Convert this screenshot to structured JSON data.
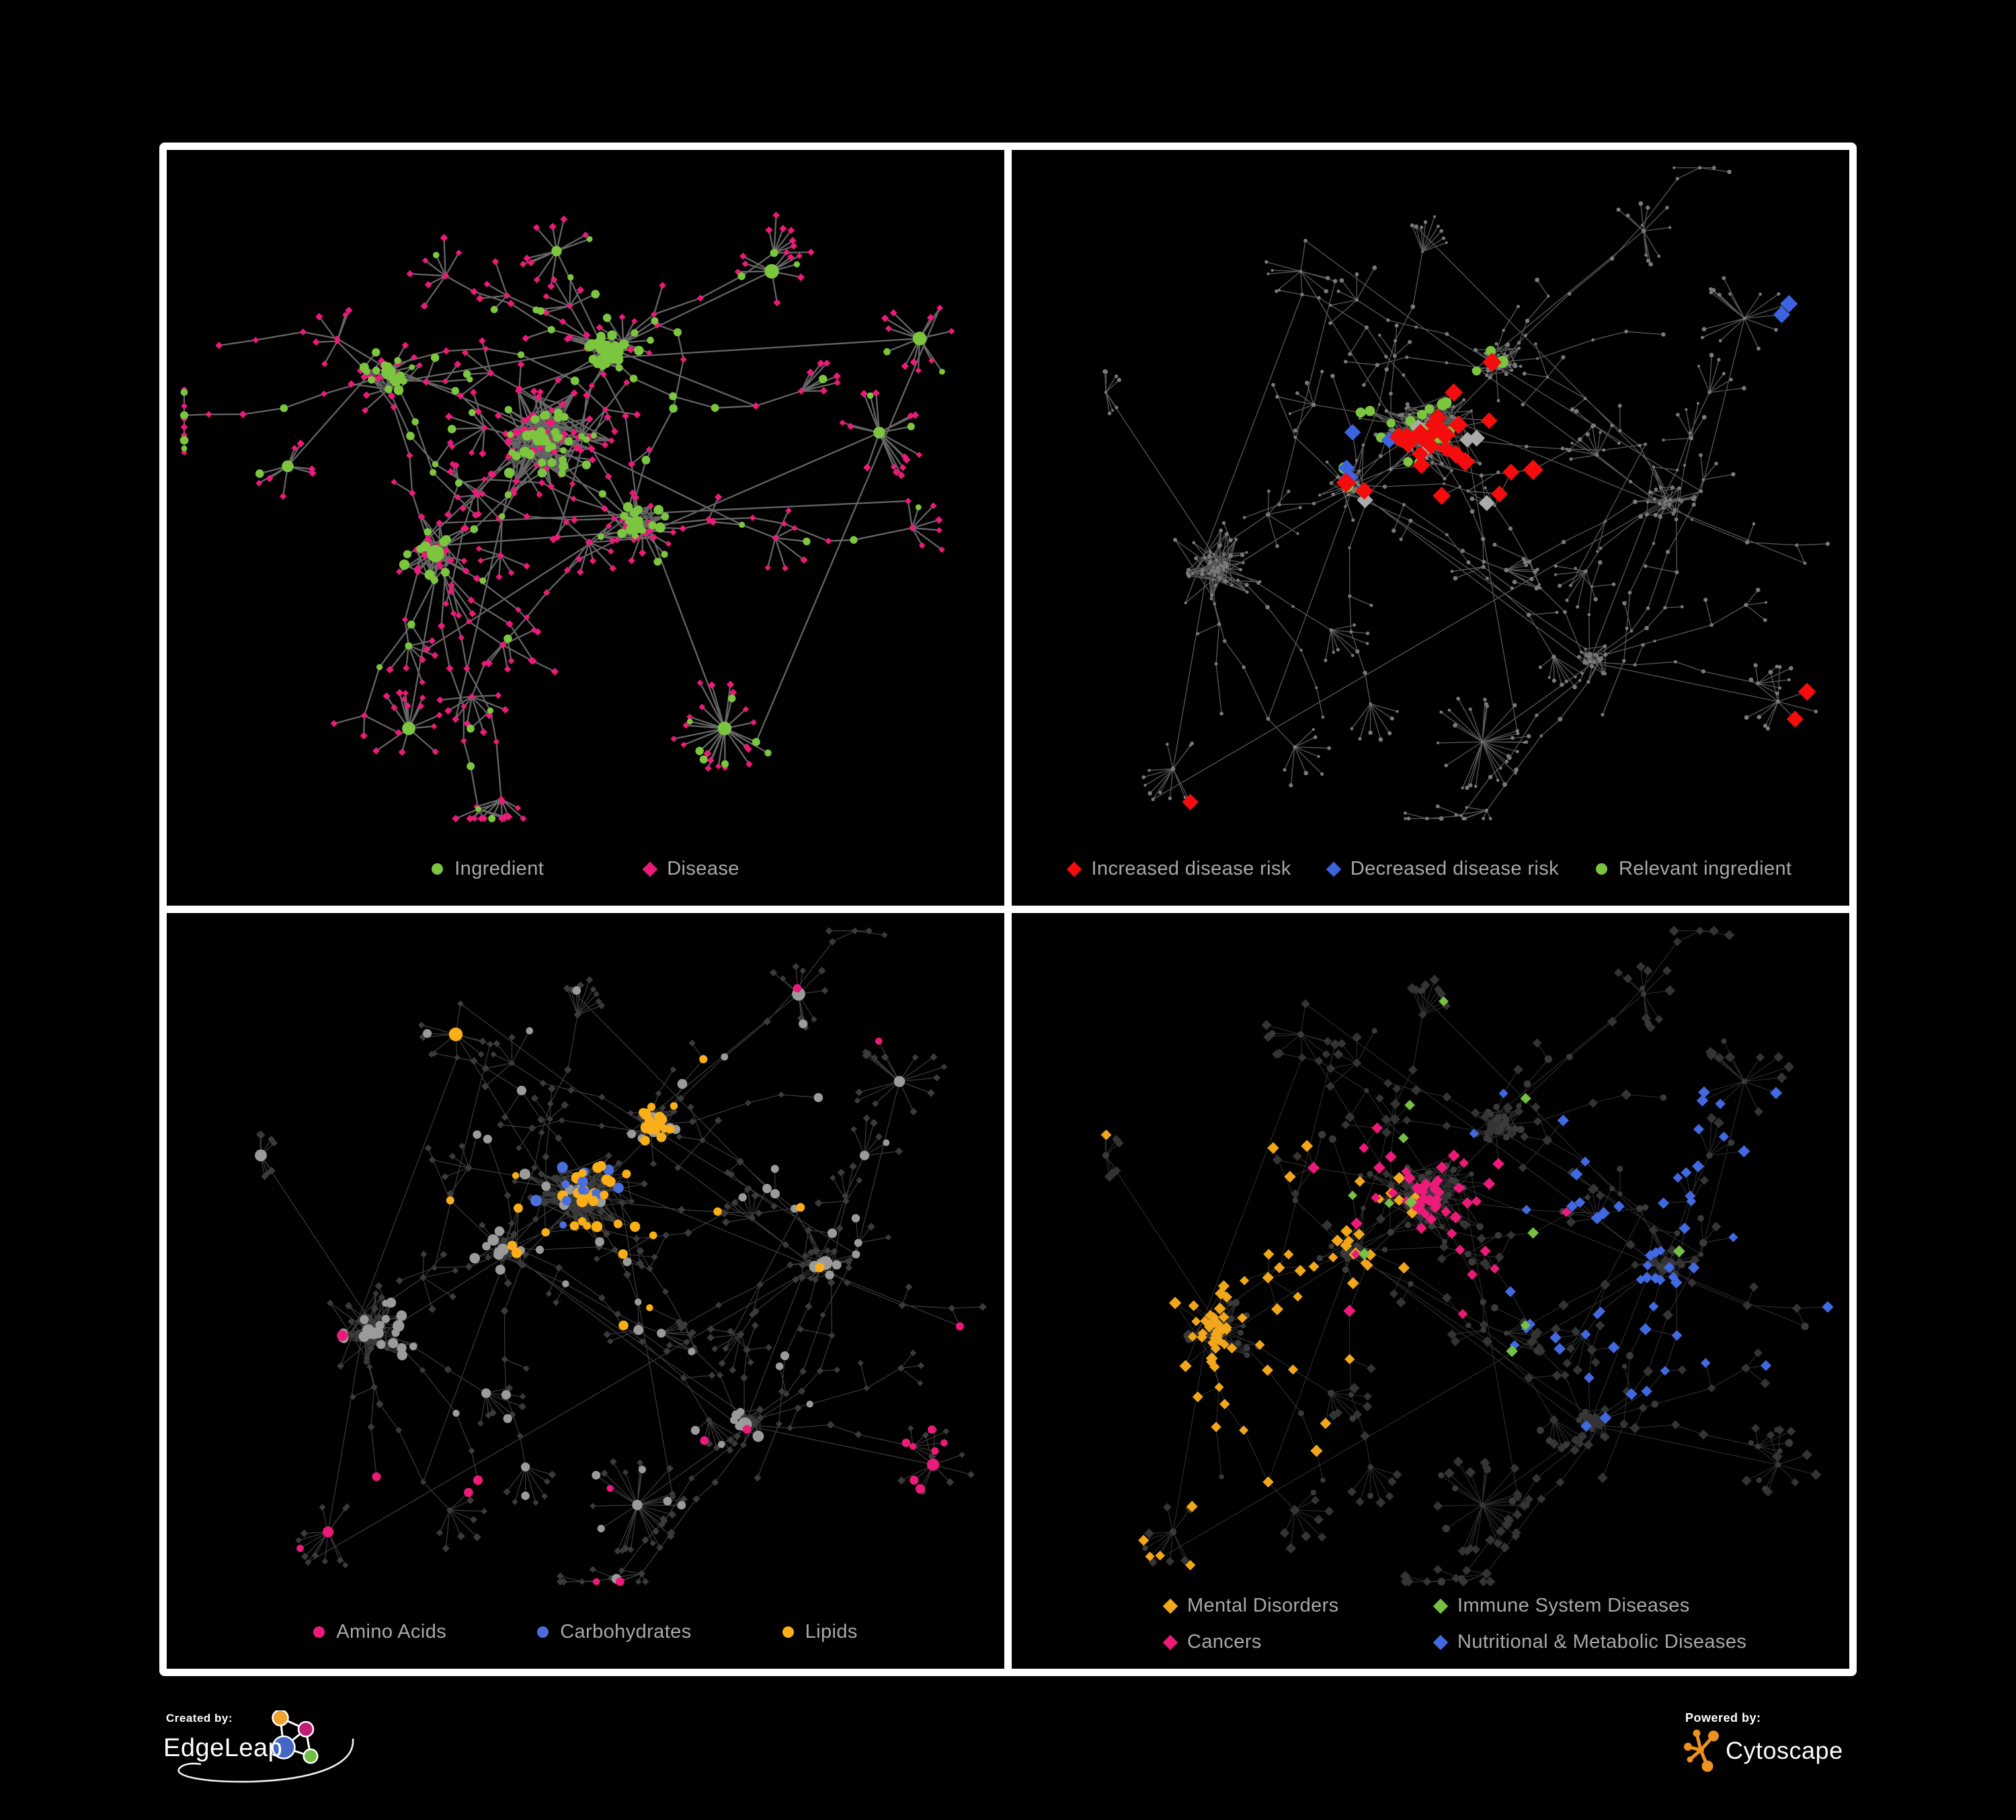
{
  "poster": {
    "background": "#000000",
    "frame_color": "#FFFFFF"
  },
  "panels": [
    {
      "id": "ingredient-disease",
      "legend": {
        "items": [
          {
            "label": "Ingredient",
            "shape": "circle",
            "color": "#7CC63F"
          },
          {
            "label": "Disease",
            "shape": "diamond",
            "color": "#EC1A79"
          }
        ]
      },
      "network": {
        "seed": 7,
        "layout": "A",
        "edge_color": "#6E6E6E",
        "edge_width": 2.3,
        "edge_opacity": 0.92,
        "ingredient_color": "#7CC63F",
        "disease_color": "#EC1A79"
      }
    },
    {
      "id": "disease-risk",
      "legend": {
        "items": [
          {
            "label": "Increased disease risk",
            "shape": "diamond",
            "color": "#F50D0D"
          },
          {
            "label": "Decreased disease risk",
            "shape": "diamond",
            "color": "#3D64E0"
          },
          {
            "label": "Relevant ingredient",
            "shape": "circle",
            "color": "#7CC63F"
          }
        ]
      },
      "network": {
        "seed": 91,
        "layout": "B",
        "edge_color": "#696969",
        "edge_width": 1.3,
        "edge_opacity": 0.85,
        "default_color": "#7A7A7A",
        "increased_color": "#F50D0D",
        "increased_count": 27,
        "decreased_color": "#3D64E0",
        "decreased_count": 7,
        "neutral_color": "#ABABAB",
        "neutral_count": 7,
        "relevant_color": "#7CC63F",
        "relevant_count": 24
      }
    },
    {
      "id": "nutrients",
      "legend": {
        "items": [
          {
            "label": "Amino Acids",
            "shape": "circle",
            "color": "#EC1A79"
          },
          {
            "label": "Carbohydrates",
            "shape": "circle",
            "color": "#4A6FDC"
          },
          {
            "label": "Lipids",
            "shape": "circle",
            "color": "#FAAE17"
          }
        ]
      },
      "network": {
        "seed": 52,
        "layout": "B",
        "edge_color": "#8F8F8F",
        "edge_width": 1.2,
        "edge_opacity": 0.42,
        "ingredient_default": "#9B9B9B",
        "disease_dim": "#3B3B3B",
        "amino_color": "#EC1A79",
        "amino_count": 22,
        "carb_color": "#4A6FDC",
        "carb_count": 13,
        "lipid_color": "#FAAE17",
        "lipid_count": 56
      }
    },
    {
      "id": "disease-classes",
      "legend": {
        "columns": 2,
        "items": [
          {
            "label": "Mental Disorders",
            "shape": "diamond",
            "color": "#F2A71B"
          },
          {
            "label": "Immune System Diseases",
            "shape": "diamond",
            "color": "#76C043"
          },
          {
            "label": "Cancers",
            "shape": "diamond",
            "color": "#EC1A79"
          },
          {
            "label": "Nutritional & Metabolic Diseases",
            "shape": "diamond",
            "color": "#4169E1"
          }
        ]
      },
      "network": {
        "seed": 77,
        "layout": "B",
        "edge_color": "#8A8A8A",
        "edge_width": 1.05,
        "edge_opacity": 0.34,
        "dim_color": "#343434",
        "circle_color": "#3A3A3A",
        "mental_color": "#F2A71B",
        "mental_count": 86,
        "immune_color": "#76C043",
        "immune_count": 12,
        "cancer_color": "#EC1A79",
        "cancer_count": 55,
        "metabolic_color": "#4169E1",
        "metabolic_count": 60
      }
    }
  ],
  "footer": {
    "created_by_label": "Created by:",
    "edgeleap_name": "EdgeLeap",
    "powered_by_label": "Powered by:",
    "cytoscape_name": "Cytoscape",
    "edgeleap_logo_colors": {
      "orange": "#F0A32F",
      "magenta": "#C21C77",
      "blue": "#4467C6",
      "green": "#6FBF44"
    },
    "cytoscape_logo_color": "#ED9121"
  }
}
